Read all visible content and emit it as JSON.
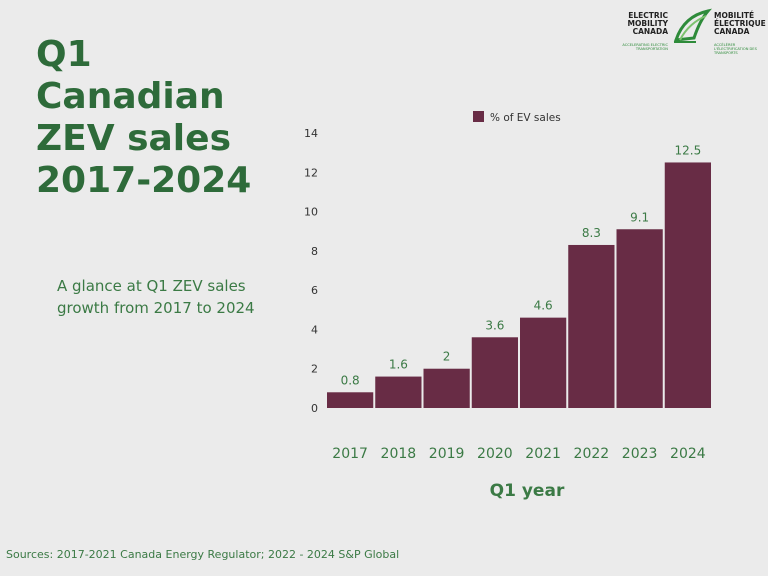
{
  "title_lines": [
    "Q1",
    "Canadian",
    "ZEV sales",
    "2017-2024"
  ],
  "subtitle": "A glance at Q1 ZEV sales growth from 2017 to 2024",
  "sources": "Sources: 2017-2021 Canada Energy Regulator; 2022 - 2024 S&P Global",
  "logo": {
    "en_lines": [
      "ELECTRIC",
      "MOBILITY",
      "CANADA"
    ],
    "en_tagline": "ACCELERATING ELECTRIC TRANSPORTATION",
    "fr_lines": [
      "MOBILITÉ",
      "ÉLECTRIQUE",
      "CANADA"
    ],
    "fr_tagline": "ACCÉLÉRER L'ÉLECTRIFICATION DES TRANSPORTS",
    "icon": "leaf-swoosh-icon"
  },
  "colors": {
    "bar": "#682c45",
    "text_green": "#3b7a45",
    "title_green": "#2e6b3a",
    "background": "#ebebeb"
  },
  "chart_data": {
    "type": "bar",
    "categories": [
      "2017",
      "2018",
      "2019",
      "2020",
      "2021",
      "2022",
      "2023",
      "2024"
    ],
    "series": [
      {
        "name": "% of EV sales",
        "values": [
          0.8,
          1.6,
          2,
          3.6,
          4.6,
          8.3,
          9.1,
          12.5
        ]
      }
    ],
    "data_labels": [
      "0.8",
      "1.6",
      "2",
      "3.6",
      "4.6",
      "8.3",
      "9.1",
      "12.5"
    ],
    "xlabel": "Q1 year",
    "ylabel": "",
    "ylim": [
      0,
      14
    ],
    "yticks": [
      0,
      2,
      4,
      6,
      8,
      10,
      12,
      14
    ],
    "grid": false,
    "legend_position": "top"
  }
}
